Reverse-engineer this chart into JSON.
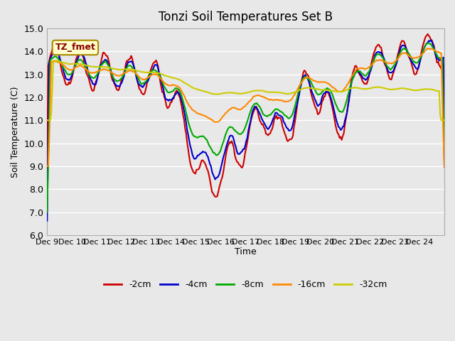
{
  "title": "Tonzi Soil Temperatures Set B",
  "xlabel": "Time",
  "ylabel": "Soil Temperature (C)",
  "ylim": [
    6.0,
    15.0
  ],
  "yticks": [
    6.0,
    7.0,
    8.0,
    9.0,
    10.0,
    11.0,
    12.0,
    13.0,
    14.0,
    15.0
  ],
  "xtick_labels": [
    "Dec 9",
    "Dec 10",
    "Dec 11",
    "Dec 12",
    "Dec 13",
    "Dec 14",
    "Dec 15",
    "Dec 16",
    "Dec 17",
    "Dec 18",
    "Dec 19",
    "Dec 20",
    "Dec 21",
    "Dec 22",
    "Dec 23",
    "Dec 24",
    ""
  ],
  "n_points": 384,
  "legend_label": "TZ_fmet",
  "series_labels": [
    "-2cm",
    "-4cm",
    "-8cm",
    "-16cm",
    "-32cm"
  ],
  "colors": [
    "#cc0000",
    "#0000cc",
    "#00aa00",
    "#ff8800",
    "#cccc00"
  ],
  "line_width": 1.5,
  "background_color": "#e8e8e8",
  "plot_bg_color": "#e8e8e8",
  "grid_color": "#ffffff",
  "legend_box_color": "#ffffcc",
  "legend_box_edge": "#aa8800"
}
